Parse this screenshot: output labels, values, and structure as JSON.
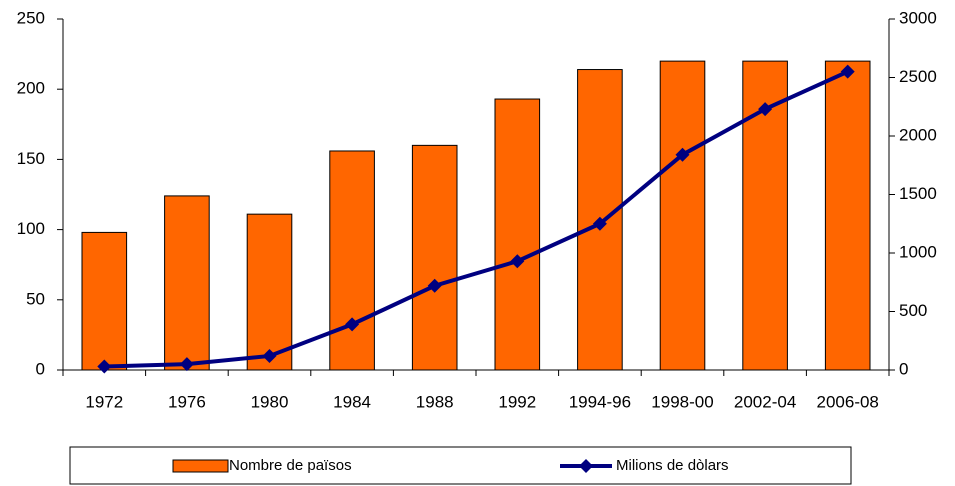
{
  "chart_data": {
    "type": "bar_line",
    "categories": [
      "1972",
      "1976",
      "1980",
      "1984",
      "1988",
      "1992",
      "1994-96",
      "1998-00",
      "2002-04",
      "2006-08"
    ],
    "series": [
      {
        "name": "Nombre de països",
        "type": "bar",
        "color": "#ff6600",
        "values": [
          98,
          124,
          111,
          156,
          160,
          193,
          214,
          220,
          220,
          220
        ]
      },
      {
        "name": "Milions de dòlars",
        "type": "line",
        "axis": "y2",
        "color": "#000080",
        "values": [
          30,
          50,
          120,
          390,
          720,
          930,
          1250,
          1840,
          2230,
          2550
        ]
      }
    ],
    "annotation": "m",
    "ylim": [
      0,
      250
    ],
    "yticks": [
      0,
      50,
      100,
      150,
      200,
      250
    ],
    "y2lim": [
      0,
      3000
    ],
    "y2ticks": [
      0,
      500,
      1000,
      1500,
      2000,
      2500,
      3000
    ],
    "grid": false,
    "legend": "bottom"
  }
}
